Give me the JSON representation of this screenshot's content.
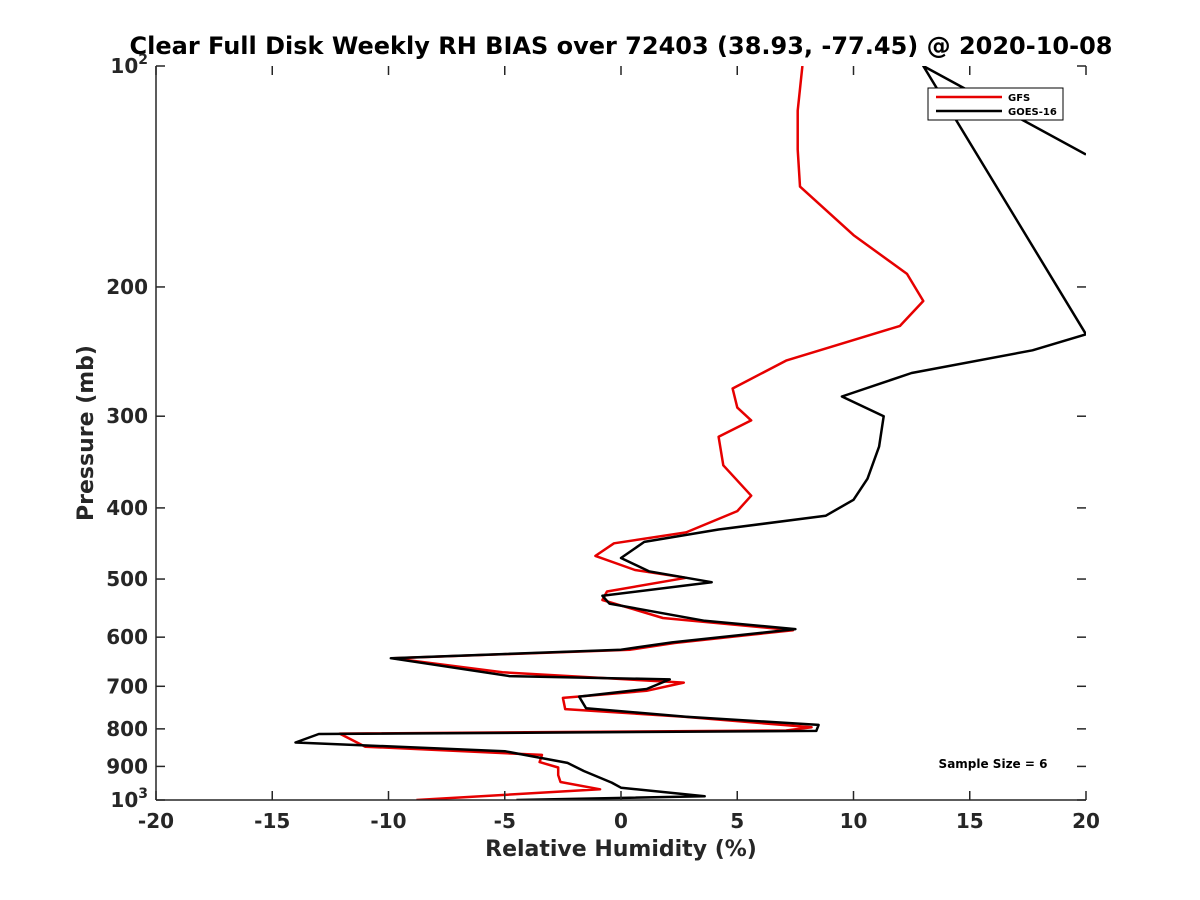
{
  "chart_data": {
    "type": "line",
    "title": "Clear Full Disk Weekly RH BIAS over 72403 (38.93, -77.45) @ 2020-10-08",
    "xlabel": "Relative Humidity (%)",
    "ylabel": "Pressure (mb)",
    "xlim": [
      -20,
      20
    ],
    "ylim": [
      100,
      1000
    ],
    "y_scale": "log",
    "y_reversed": true,
    "grid": false,
    "legend_position": "top-right",
    "x_ticks": [
      "-20",
      "-15",
      "-10",
      "-5",
      "0",
      "5",
      "10",
      "15",
      "20"
    ],
    "y_ticks": [
      {
        "value": 100,
        "base": "10",
        "exp": "2"
      },
      {
        "value": 200,
        "label": "200"
      },
      {
        "value": 300,
        "label": "300"
      },
      {
        "value": 400,
        "label": "400"
      },
      {
        "value": 500,
        "label": "500"
      },
      {
        "value": 600,
        "label": "600"
      },
      {
        "value": 700,
        "label": "700"
      },
      {
        "value": 800,
        "label": "800"
      },
      {
        "value": 900,
        "label": "900"
      },
      {
        "value": 1000,
        "base": "10",
        "exp": "3"
      }
    ],
    "series": [
      {
        "name": "GFS",
        "color": "#e60000",
        "points": [
          [
            7.8,
            100
          ],
          [
            7.6,
            115
          ],
          [
            7.6,
            130
          ],
          [
            7.7,
            146
          ],
          [
            10.0,
            170
          ],
          [
            12.3,
            192
          ],
          [
            13.0,
            209
          ],
          [
            12.0,
            226
          ],
          [
            7.1,
            252
          ],
          [
            4.8,
            275
          ],
          [
            5.0,
            292
          ],
          [
            5.6,
            304
          ],
          [
            4.2,
            320
          ],
          [
            4.4,
            350
          ],
          [
            5.6,
            385
          ],
          [
            5.0,
            404
          ],
          [
            2.8,
            432
          ],
          [
            -0.3,
            447
          ],
          [
            -1.1,
            465
          ],
          [
            0.6,
            486
          ],
          [
            2.8,
            498
          ],
          [
            -0.6,
            520
          ],
          [
            -0.8,
            534
          ],
          [
            1.8,
            565
          ],
          [
            7.4,
            587
          ],
          [
            2.3,
            611
          ],
          [
            0.4,
            624
          ],
          [
            -9.8,
            641
          ],
          [
            -5.1,
            670
          ],
          [
            2.7,
            692
          ],
          [
            1.1,
            710
          ],
          [
            -2.5,
            726
          ],
          [
            -2.4,
            752
          ],
          [
            2.7,
            770
          ],
          [
            8.2,
            796
          ],
          [
            7.1,
            804
          ],
          [
            -12.1,
            812
          ],
          [
            -11.0,
            846
          ],
          [
            -3.4,
            868
          ],
          [
            -3.5,
            888
          ],
          [
            -2.7,
            903
          ],
          [
            -2.7,
            925
          ],
          [
            -2.6,
            945
          ],
          [
            -0.9,
            967
          ],
          [
            -8.8,
            1000
          ]
        ]
      },
      {
        "name": "GOES-16",
        "color": "#000000",
        "points": [
          [
            20.0,
            132
          ],
          [
            13.0,
            100
          ],
          [
            20.0,
            232
          ],
          [
            17.7,
            244
          ],
          [
            12.5,
            262
          ],
          [
            9.5,
            282
          ],
          [
            11.3,
            300
          ],
          [
            11.1,
            330
          ],
          [
            10.6,
            365
          ],
          [
            10.0,
            390
          ],
          [
            8.8,
            410
          ],
          [
            4.2,
            428
          ],
          [
            1.0,
            445
          ],
          [
            0.0,
            468
          ],
          [
            1.2,
            488
          ],
          [
            3.9,
            505
          ],
          [
            -0.8,
            527
          ],
          [
            -0.5,
            540
          ],
          [
            3.6,
            570
          ],
          [
            7.5,
            585
          ],
          [
            2.2,
            610
          ],
          [
            0.0,
            624
          ],
          [
            -9.9,
            641
          ],
          [
            -4.8,
            678
          ],
          [
            2.1,
            685
          ],
          [
            1.1,
            706
          ],
          [
            -1.8,
            723
          ],
          [
            -1.5,
            750
          ],
          [
            2.8,
            770
          ],
          [
            8.5,
            790
          ],
          [
            8.4,
            805
          ],
          [
            -13.0,
            813
          ],
          [
            -14.0,
            835
          ],
          [
            -5.0,
            858
          ],
          [
            -2.3,
            890
          ],
          [
            -1.6,
            913
          ],
          [
            -0.4,
            947
          ],
          [
            0.0,
            962
          ],
          [
            3.6,
            988
          ],
          [
            -4.5,
            1000
          ]
        ]
      }
    ],
    "annotations": [
      {
        "text": "Sample Size = 6",
        "x": 16,
        "y": 905
      }
    ]
  }
}
